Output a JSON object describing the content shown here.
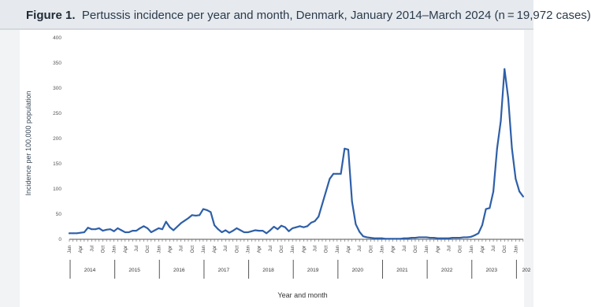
{
  "header": {
    "figure_label": "Figure 1.",
    "title": "Pertussis incidence per year and month, Denmark, January 2014–March 2024 (n = 19,972 cases)"
  },
  "chart_data": {
    "type": "line",
    "title": "Pertussis incidence per year and month, Denmark, January 2014–March 2024 (n = 19,972 cases)",
    "xlabel": "Year and month",
    "ylabel": "Incidence per 100,000 population",
    "ylim": [
      0,
      400
    ],
    "yticks": [
      0,
      50,
      100,
      150,
      200,
      250,
      300,
      350,
      400
    ],
    "grid": false,
    "line_color": "#2e5fa8",
    "quarter_labels": [
      "Jan",
      "Apr",
      "Jul",
      "Oct"
    ],
    "years": [
      "2014",
      "2015",
      "2016",
      "2017",
      "2018",
      "2019",
      "2020",
      "2021",
      "2022",
      "2023",
      "202"
    ],
    "series": [
      {
        "values": [
          12,
          12,
          12,
          13,
          14,
          23,
          20,
          20,
          22,
          17,
          19,
          20,
          16,
          22,
          18,
          14,
          14,
          17,
          17,
          22,
          26,
          22,
          14,
          18,
          22,
          20,
          35,
          24,
          18,
          25,
          32,
          37,
          42,
          48,
          47,
          48,
          60,
          58,
          54,
          28,
          20,
          14,
          18,
          13,
          17,
          22,
          18,
          14,
          14,
          16,
          18,
          17,
          17,
          12,
          18,
          25,
          20,
          27,
          24,
          16,
          22,
          24,
          26,
          24,
          26,
          33,
          36,
          45,
          70,
          95,
          120,
          130,
          130,
          130,
          180,
          178,
          75,
          30,
          15,
          6,
          4,
          3,
          2,
          2,
          2,
          1,
          1,
          1,
          1,
          1,
          2,
          2,
          3,
          3,
          4,
          4,
          4,
          3,
          3,
          2,
          2,
          2,
          2,
          3,
          3,
          3,
          4,
          4,
          5,
          8,
          12,
          28,
          60,
          62,
          95,
          180,
          235,
          338,
          280,
          180,
          120,
          95,
          85
        ]
      }
    ]
  }
}
